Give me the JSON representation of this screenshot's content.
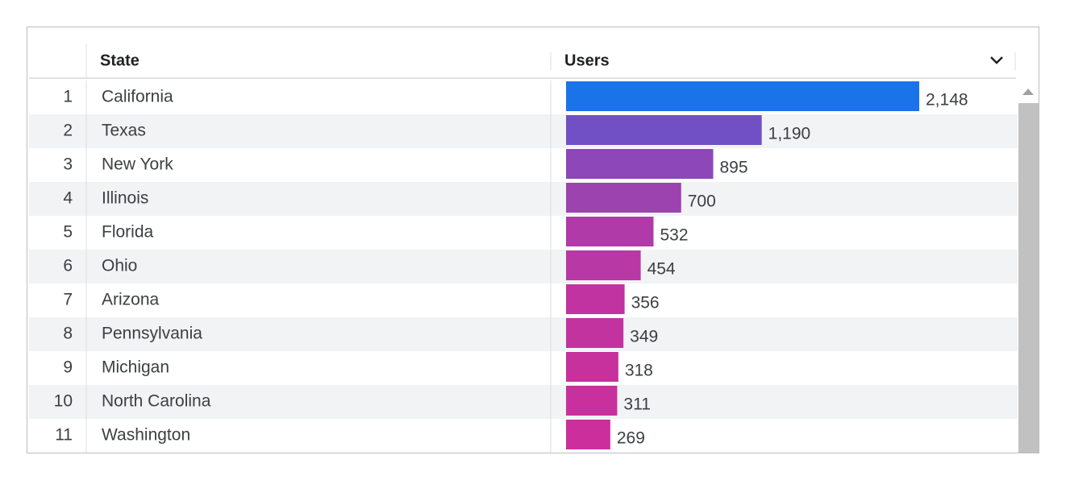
{
  "table": {
    "columns": [
      "State",
      "Users"
    ],
    "rows": [
      {
        "rank": 1,
        "state": "California",
        "users": 2148,
        "users_label": "2,148",
        "color": "#1a73e8"
      },
      {
        "rank": 2,
        "state": "Texas",
        "users": 1190,
        "users_label": "1,190",
        "color": "#7150c4"
      },
      {
        "rank": 3,
        "state": "New York",
        "users": 895,
        "users_label": "895",
        "color": "#8e47b9"
      },
      {
        "rank": 4,
        "state": "Illinois",
        "users": 700,
        "users_label": "700",
        "color": "#9c43b0"
      },
      {
        "rank": 5,
        "state": "Florida",
        "users": 532,
        "users_label": "532",
        "color": "#b03aa8"
      },
      {
        "rank": 6,
        "state": "Ohio",
        "users": 454,
        "users_label": "454",
        "color": "#b838a5"
      },
      {
        "rank": 7,
        "state": "Arizona",
        "users": 356,
        "users_label": "356",
        "color": "#c133a0"
      },
      {
        "rank": 8,
        "state": "Pennsylvania",
        "users": 349,
        "users_label": "349",
        "color": "#c2339f"
      },
      {
        "rank": 9,
        "state": "Michigan",
        "users": 318,
        "users_label": "318",
        "color": "#c6319e"
      },
      {
        "rank": 10,
        "state": "North Carolina",
        "users": 311,
        "users_label": "311",
        "color": "#c8309d"
      },
      {
        "rank": 11,
        "state": "Washington",
        "users": 269,
        "users_label": "269",
        "color": "#cc2f9b"
      }
    ]
  }
}
